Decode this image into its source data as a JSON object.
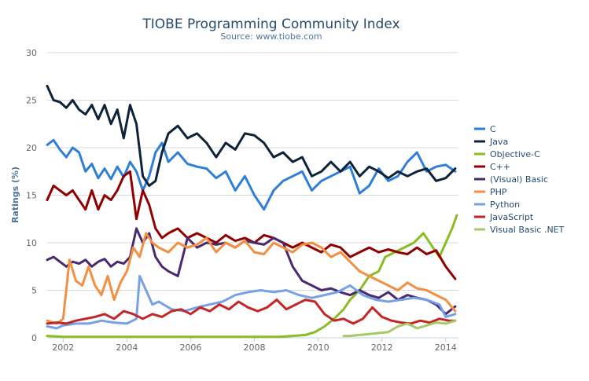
{
  "chart_data": {
    "type": "line",
    "title": "TIOBE Programming Community Index",
    "subtitle": "Source: www.tiobe.com",
    "xlabel": "",
    "ylabel": "Ratings (%)",
    "xlim": [
      2001.5,
      2014.4
    ],
    "ylim": [
      0,
      30
    ],
    "x_ticks": [
      2002,
      2004,
      2006,
      2008,
      2010,
      2012,
      2014
    ],
    "x_tick_labels": [
      "2002",
      "2004",
      "2006",
      "2008",
      "2010",
      "2012",
      "2014"
    ],
    "y_ticks": [
      0,
      5,
      10,
      15,
      20,
      25,
      30
    ],
    "y_tick_labels": [
      "0",
      "5",
      "10",
      "15",
      "20",
      "25",
      "30"
    ],
    "grid": true,
    "legend_position": "right",
    "series": [
      {
        "name": "C",
        "color": "#2f7ed8",
        "x": [
          2001.5,
          2001.7,
          2001.9,
          2002.1,
          2002.3,
          2002.5,
          2002.7,
          2002.9,
          2003.1,
          2003.3,
          2003.5,
          2003.7,
          2003.9,
          2004.1,
          2004.3,
          2004.5,
          2004.7,
          2004.9,
          2005.1,
          2005.3,
          2005.6,
          2005.9,
          2006.2,
          2006.5,
          2006.8,
          2007.1,
          2007.4,
          2007.7,
          2008.0,
          2008.3,
          2008.6,
          2008.9,
          2009.2,
          2009.5,
          2009.8,
          2010.1,
          2010.4,
          2010.7,
          2011.0,
          2011.3,
          2011.6,
          2011.9,
          2012.2,
          2012.5,
          2012.8,
          2013.1,
          2013.4,
          2013.7,
          2014.0,
          2014.3
        ],
        "values": [
          20.3,
          20.8,
          19.8,
          19.0,
          20.0,
          19.5,
          17.5,
          18.3,
          16.8,
          17.8,
          16.7,
          18.0,
          16.9,
          18.5,
          17.5,
          15.5,
          17.0,
          19.5,
          20.5,
          18.5,
          19.5,
          18.3,
          18.0,
          17.8,
          16.8,
          17.5,
          15.5,
          17.0,
          15.0,
          13.5,
          15.5,
          16.5,
          17.0,
          17.5,
          15.5,
          16.5,
          17.0,
          17.5,
          18.0,
          15.2,
          16.0,
          17.8,
          16.5,
          17.0,
          18.5,
          19.5,
          17.5,
          18.0,
          18.2,
          17.5
        ]
      },
      {
        "name": "Java",
        "color": "#0d233a",
        "x": [
          2001.5,
          2001.7,
          2001.9,
          2002.1,
          2002.3,
          2002.5,
          2002.7,
          2002.9,
          2003.1,
          2003.3,
          2003.5,
          2003.7,
          2003.9,
          2004.1,
          2004.3,
          2004.5,
          2004.7,
          2004.9,
          2005.1,
          2005.3,
          2005.6,
          2005.9,
          2006.2,
          2006.5,
          2006.8,
          2007.1,
          2007.4,
          2007.7,
          2008.0,
          2008.3,
          2008.6,
          2008.9,
          2009.2,
          2009.5,
          2009.8,
          2010.1,
          2010.4,
          2010.7,
          2011.0,
          2011.3,
          2011.6,
          2011.9,
          2012.2,
          2012.5,
          2012.8,
          2013.1,
          2013.4,
          2013.7,
          2014.0,
          2014.3
        ],
        "values": [
          26.5,
          25.0,
          24.8,
          24.2,
          25.0,
          24.0,
          23.5,
          24.5,
          23.0,
          24.5,
          22.5,
          24.0,
          21.0,
          24.5,
          22.5,
          17.0,
          16.0,
          16.5,
          19.5,
          21.5,
          22.3,
          21.0,
          21.5,
          20.5,
          19.0,
          20.5,
          19.8,
          21.5,
          21.3,
          20.5,
          19.0,
          19.5,
          18.5,
          19.0,
          17.0,
          17.5,
          18.5,
          17.5,
          18.5,
          17.0,
          18.0,
          17.5,
          16.8,
          17.5,
          17.0,
          17.5,
          17.8,
          16.5,
          16.8,
          17.8
        ]
      },
      {
        "name": "Objective-C",
        "color": "#8bbc21",
        "x": [
          2001.5,
          2002.0,
          2003.0,
          2004.0,
          2005.0,
          2006.0,
          2007.0,
          2008.0,
          2008.8,
          2009.2,
          2009.6,
          2009.9,
          2010.2,
          2010.5,
          2010.8,
          2011.0,
          2011.3,
          2011.6,
          2011.9,
          2012.1,
          2012.4,
          2012.7,
          2013.0,
          2013.3,
          2013.6,
          2013.8,
          2014.0,
          2014.2,
          2014.35
        ],
        "values": [
          0.2,
          0.1,
          0.1,
          0.1,
          0.1,
          0.1,
          0.1,
          0.1,
          0.1,
          0.2,
          0.3,
          0.6,
          1.2,
          2.0,
          3.0,
          4.0,
          5.0,
          6.5,
          7.0,
          8.5,
          9.0,
          9.5,
          10.0,
          11.0,
          9.5,
          8.5,
          10.0,
          11.5,
          12.9
        ]
      },
      {
        "name": "C++",
        "color": "#910000",
        "x": [
          2001.5,
          2001.7,
          2001.9,
          2002.1,
          2002.3,
          2002.5,
          2002.7,
          2002.9,
          2003.1,
          2003.3,
          2003.5,
          2003.7,
          2003.9,
          2004.1,
          2004.3,
          2004.5,
          2004.7,
          2004.9,
          2005.1,
          2005.3,
          2005.6,
          2005.9,
          2006.2,
          2006.5,
          2006.8,
          2007.1,
          2007.4,
          2007.7,
          2008.0,
          2008.3,
          2008.6,
          2008.9,
          2009.2,
          2009.5,
          2009.8,
          2010.1,
          2010.4,
          2010.7,
          2011.0,
          2011.3,
          2011.6,
          2011.9,
          2012.2,
          2012.5,
          2012.8,
          2013.1,
          2013.4,
          2013.7,
          2014.0,
          2014.3
        ],
        "values": [
          14.5,
          16.0,
          15.5,
          15.0,
          15.5,
          14.5,
          13.5,
          15.5,
          13.5,
          15.0,
          14.5,
          15.5,
          17.0,
          17.5,
          12.5,
          15.5,
          14.0,
          11.5,
          10.5,
          11.0,
          11.5,
          10.5,
          11.0,
          10.5,
          10.0,
          10.8,
          10.2,
          10.5,
          10.0,
          10.8,
          10.5,
          10.0,
          9.5,
          10.0,
          9.5,
          9.0,
          9.8,
          9.5,
          8.5,
          9.0,
          9.5,
          9.0,
          9.3,
          9.0,
          8.8,
          9.5,
          8.8,
          9.2,
          7.5,
          6.2
        ]
      },
      {
        "name": "(Visual) Basic",
        "color": "#492970",
        "x": [
          2001.5,
          2001.7,
          2001.9,
          2002.1,
          2002.3,
          2002.5,
          2002.7,
          2002.9,
          2003.1,
          2003.3,
          2003.5,
          2003.7,
          2003.9,
          2004.1,
          2004.3,
          2004.5,
          2004.7,
          2004.9,
          2005.1,
          2005.3,
          2005.6,
          2005.9,
          2006.2,
          2006.5,
          2006.8,
          2007.1,
          2007.4,
          2007.7,
          2008.0,
          2008.3,
          2008.6,
          2008.9,
          2009.2,
          2009.5,
          2009.8,
          2010.1,
          2010.4,
          2010.7,
          2011.0,
          2011.3,
          2011.6,
          2011.9,
          2012.2,
          2012.5,
          2012.8,
          2013.1,
          2013.4,
          2013.7,
          2014.0,
          2014.3
        ],
        "values": [
          8.2,
          8.5,
          8.0,
          7.5,
          8.0,
          7.8,
          8.2,
          7.5,
          8.0,
          8.3,
          7.5,
          8.0,
          7.8,
          8.5,
          11.5,
          10.0,
          11.0,
          8.5,
          7.5,
          7.0,
          6.5,
          10.5,
          9.5,
          10.0,
          9.8,
          10.0,
          9.5,
          10.2,
          10.0,
          9.8,
          10.5,
          10.0,
          7.5,
          6.0,
          5.5,
          5.0,
          5.2,
          4.8,
          4.5,
          5.0,
          4.5,
          4.2,
          4.8,
          4.0,
          4.5,
          4.2,
          4.0,
          3.5,
          2.5,
          3.3
        ]
      },
      {
        "name": "PHP",
        "color": "#f28f43",
        "x": [
          2001.5,
          2001.8,
          2002.0,
          2002.2,
          2002.4,
          2002.6,
          2002.8,
          2003.0,
          2003.2,
          2003.4,
          2003.6,
          2003.8,
          2004.0,
          2004.2,
          2004.4,
          2004.6,
          2004.8,
          2005.0,
          2005.3,
          2005.6,
          2005.9,
          2006.2,
          2006.5,
          2006.8,
          2007.1,
          2007.4,
          2007.7,
          2008.0,
          2008.3,
          2008.6,
          2008.9,
          2009.2,
          2009.5,
          2009.8,
          2010.1,
          2010.4,
          2010.7,
          2011.0,
          2011.3,
          2011.6,
          2011.9,
          2012.2,
          2012.5,
          2012.8,
          2013.1,
          2013.4,
          2013.7,
          2014.0,
          2014.3
        ],
        "values": [
          1.8,
          1.5,
          2.0,
          8.2,
          6.0,
          5.5,
          7.5,
          5.5,
          4.5,
          6.5,
          4.0,
          5.8,
          7.0,
          9.5,
          8.5,
          11.0,
          10.0,
          9.5,
          9.0,
          10.0,
          9.5,
          9.8,
          10.5,
          9.0,
          10.0,
          9.5,
          10.2,
          9.0,
          8.8,
          10.0,
          9.5,
          9.0,
          9.8,
          10.0,
          9.5,
          8.5,
          9.0,
          8.0,
          7.0,
          6.5,
          6.0,
          5.5,
          5.0,
          5.8,
          5.2,
          5.0,
          4.5,
          4.0,
          2.8
        ]
      },
      {
        "name": "Python",
        "color": "#77a1e5",
        "x": [
          2001.5,
          2001.8,
          2002.0,
          2002.4,
          2002.8,
          2003.2,
          2003.6,
          2004.0,
          2004.3,
          2004.4,
          2004.6,
          2004.8,
          2005.0,
          2005.4,
          2005.8,
          2006.2,
          2006.6,
          2007.0,
          2007.4,
          2007.8,
          2008.2,
          2008.6,
          2009.0,
          2009.4,
          2009.8,
          2010.2,
          2010.6,
          2011.0,
          2011.4,
          2011.8,
          2012.2,
          2012.6,
          2013.0,
          2013.4,
          2013.8,
          2014.0,
          2014.3
        ],
        "values": [
          1.2,
          1.0,
          1.3,
          1.5,
          1.5,
          1.8,
          1.6,
          1.5,
          2.0,
          6.5,
          5.0,
          3.5,
          3.8,
          3.0,
          2.8,
          3.2,
          3.5,
          3.8,
          4.5,
          4.8,
          5.0,
          4.8,
          5.0,
          4.5,
          4.2,
          4.5,
          4.8,
          5.5,
          4.5,
          4.0,
          3.8,
          4.0,
          4.2,
          4.0,
          3.5,
          2.2,
          2.5
        ]
      },
      {
        "name": "JavaScript",
        "color": "#c42525",
        "x": [
          2001.5,
          2001.8,
          2002.1,
          2002.4,
          2002.7,
          2003.0,
          2003.3,
          2003.6,
          2003.9,
          2004.2,
          2004.5,
          2004.8,
          2005.1,
          2005.4,
          2005.7,
          2006.0,
          2006.3,
          2006.6,
          2006.9,
          2007.2,
          2007.5,
          2007.8,
          2008.1,
          2008.4,
          2008.7,
          2009.0,
          2009.3,
          2009.6,
          2009.9,
          2010.2,
          2010.5,
          2010.8,
          2011.1,
          2011.4,
          2011.7,
          2012.0,
          2012.3,
          2012.6,
          2012.9,
          2013.2,
          2013.5,
          2013.8,
          2014.1,
          2014.3
        ],
        "values": [
          1.5,
          1.6,
          1.5,
          1.8,
          2.0,
          2.2,
          2.5,
          2.0,
          2.8,
          2.5,
          2.0,
          2.5,
          2.2,
          2.8,
          3.0,
          2.5,
          3.2,
          2.8,
          3.5,
          3.0,
          3.8,
          3.2,
          2.8,
          3.2,
          4.0,
          3.0,
          3.5,
          4.0,
          3.8,
          2.5,
          1.8,
          2.0,
          1.5,
          2.0,
          3.2,
          2.2,
          1.8,
          1.6,
          1.5,
          1.8,
          1.6,
          2.0,
          1.8,
          1.8
        ]
      },
      {
        "name": "Visual Basic .NET",
        "color": "#a6c96a",
        "x": [
          2010.8,
          2011.0,
          2011.3,
          2011.6,
          2011.9,
          2012.2,
          2012.5,
          2012.8,
          2013.1,
          2013.4,
          2013.7,
          2014.0,
          2014.3
        ],
        "values": [
          0.2,
          0.2,
          0.3,
          0.4,
          0.5,
          0.6,
          1.2,
          1.5,
          1.0,
          1.3,
          1.6,
          1.5,
          1.8
        ]
      }
    ]
  }
}
